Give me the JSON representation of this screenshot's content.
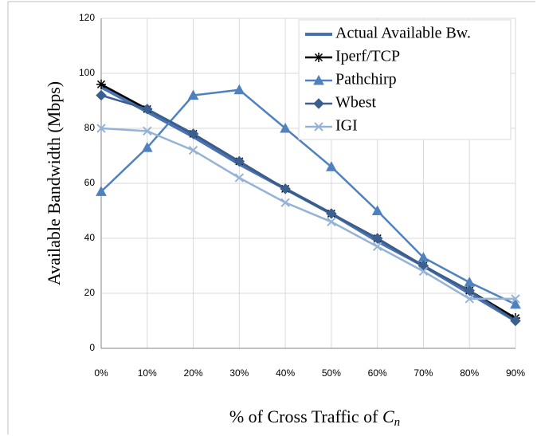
{
  "chart_data": {
    "type": "line",
    "y_label": "Available Bandwidth (Mbps)",
    "x_label": "% of Cross Traffic of ",
    "x_label_var": "C",
    "x_label_sub": "n",
    "categories": [
      "0%",
      "10%",
      "20%",
      "30%",
      "40%",
      "50%",
      "60%",
      "70%",
      "80%",
      "90%"
    ],
    "series": [
      {
        "name": "Actual Available Bw.",
        "color": "#4a72b0",
        "marker": "none",
        "values": [
          95,
          86,
          77,
          67,
          58,
          49,
          39,
          30,
          20,
          10
        ]
      },
      {
        "name": "Iperf/TCP",
        "color": "#000000",
        "marker": "star",
        "values": [
          96,
          87,
          78,
          68,
          58,
          49,
          40,
          30,
          21,
          11
        ]
      },
      {
        "name": "Pathchirp",
        "color": "#4f81bd",
        "marker": "triangle",
        "values": [
          57,
          73,
          92,
          94,
          80,
          66,
          50,
          33,
          24,
          16
        ]
      },
      {
        "name": "Wbest",
        "color": "#3b5f8f",
        "marker": "diamond",
        "values": [
          92,
          87,
          78,
          68,
          58,
          49,
          40,
          30,
          21,
          10
        ]
      },
      {
        "name": "IGI",
        "color": "#95b3d7",
        "marker": "x",
        "values": [
          80,
          79,
          72,
          62,
          53,
          46,
          37,
          28,
          18,
          18
        ]
      }
    ],
    "ylim": [
      0,
      120
    ],
    "yticks": [
      0,
      20,
      40,
      60,
      80,
      100,
      120
    ],
    "grid": true
  }
}
